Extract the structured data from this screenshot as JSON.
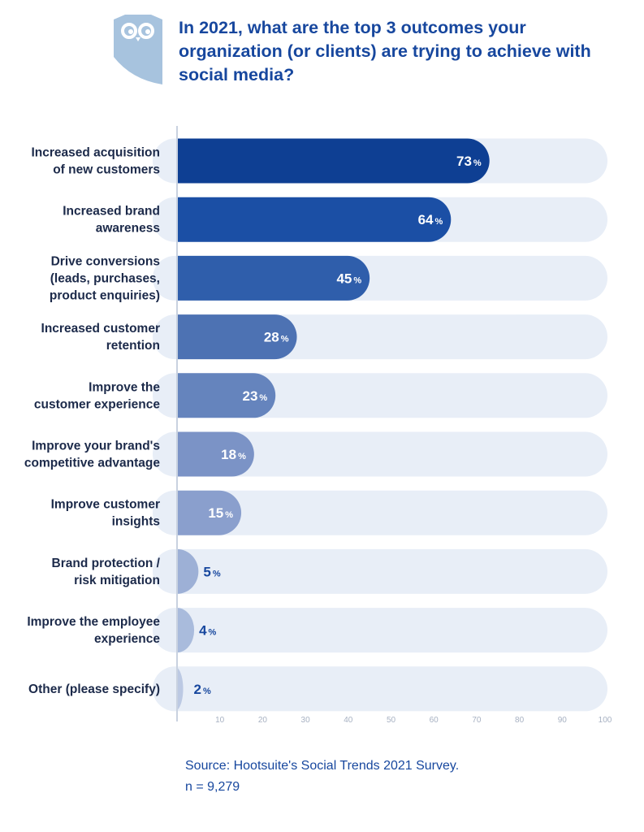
{
  "header": {
    "title": "In 2021, what are the top 3 outcomes your organization (or clients) are trying to achieve with social media?",
    "logo_icon": "owl-icon"
  },
  "chart_data": {
    "type": "bar",
    "orientation": "horizontal",
    "title": "In 2021, what are the top 3 outcomes your organization (or clients) are trying to achieve with social media?",
    "categories": [
      [
        "Increased acquisition",
        "of new customers"
      ],
      [
        "Increased brand",
        "awareness"
      ],
      [
        "Drive conversions",
        "(leads, purchases,",
        "product enquiries)"
      ],
      [
        "Increased customer",
        "retention"
      ],
      [
        "Improve the",
        "customer experience"
      ],
      [
        "Improve your brand's",
        "competitive advantage"
      ],
      [
        "Improve customer",
        "insights"
      ],
      [
        "Brand protection /",
        "risk mitigation"
      ],
      [
        "Improve the employee",
        "experience"
      ],
      [
        "Other (please specify)"
      ]
    ],
    "values": [
      73,
      64,
      45,
      28,
      23,
      18,
      15,
      5,
      4,
      2
    ],
    "value_suffix": "%",
    "xlim": [
      0,
      100
    ],
    "xticks": [
      10,
      20,
      30,
      40,
      50,
      60,
      70,
      80,
      90,
      100
    ],
    "grid": false,
    "colors": [
      "#0e3f93",
      "#1b4fa5",
      "#2f5eab",
      "#4d72b3",
      "#6584bd",
      "#7b93c6",
      "#8a9fcd",
      "#9db0d6",
      "#a9bbdc",
      "#bcc9e3"
    ],
    "track_color": "#e8eef7",
    "label_color": "#17479e"
  },
  "footer": {
    "source": "Source:  Hootsuite's Social Trends 2021 Survey.",
    "n": "n = 9,279"
  }
}
